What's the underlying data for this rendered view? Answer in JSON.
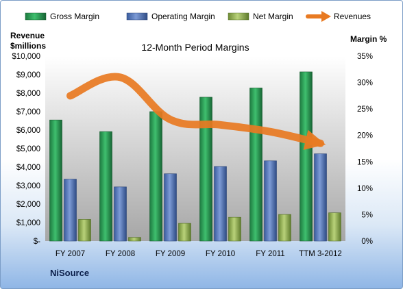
{
  "chart_data": {
    "type": "bar",
    "title": "12-Month Period Margins",
    "categories": [
      "FY 2007",
      "FY 2008",
      "FY 2009",
      "FY 2010",
      "FY 2011",
      "TTM 3-2012"
    ],
    "series": [
      {
        "name": "Gross Margin",
        "axis": "left",
        "color": "#1f8a4c",
        "values": [
          6550,
          5920,
          7000,
          7780,
          8280,
          9150
        ]
      },
      {
        "name": "Operating Margin",
        "axis": "left",
        "color": "#4a6fb5",
        "values": [
          3350,
          2930,
          3640,
          4030,
          4340,
          4720
        ]
      },
      {
        "name": "Net Margin",
        "axis": "left",
        "color": "#8fae4a",
        "values": [
          1170,
          200,
          960,
          1290,
          1440,
          1530
        ]
      },
      {
        "name": "Revenues",
        "axis": "right",
        "type": "line",
        "color": "#e87a22",
        "values": [
          27.5,
          31.0,
          23.0,
          22.0,
          20.7,
          18.5
        ]
      }
    ],
    "y_left": {
      "label_line1": "Revenue",
      "label_line2": "$millions",
      "ylim": [
        0,
        10000
      ],
      "ticks": [
        "$10,000",
        "$9,000",
        "$8,000",
        "$7,000",
        "$6,000",
        "$5,000",
        "$4,000",
        "$3,000",
        "$2,000",
        "$1,000",
        "$-"
      ]
    },
    "y_right": {
      "label": "Margin %",
      "ylim": [
        0,
        35
      ],
      "ticks": [
        "35%",
        "30%",
        "25%",
        "20%",
        "15%",
        "10%",
        "5%",
        "0%"
      ]
    },
    "legend_position": "top",
    "grid": false,
    "footer": "NiSource"
  },
  "colors": {
    "plot_top": "#ffffff",
    "plot_bottom": "#a6a6a6",
    "revenues_line": "#e87a22"
  }
}
